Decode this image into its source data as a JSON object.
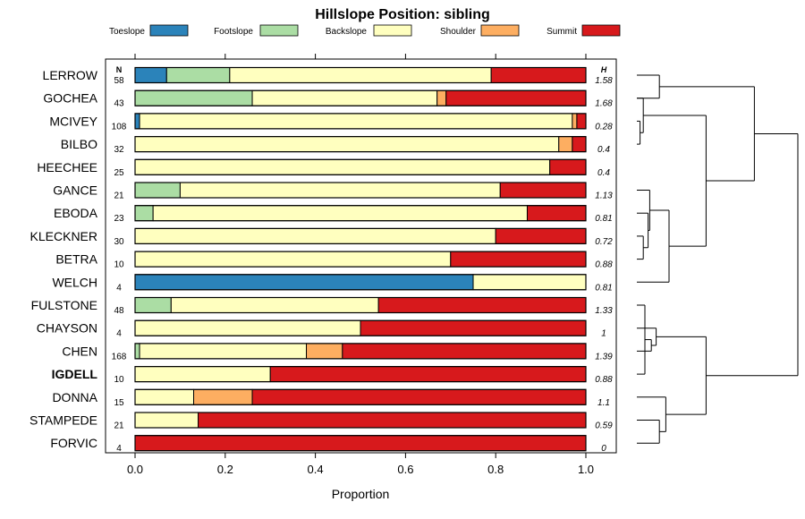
{
  "chart_data": {
    "type": "bar",
    "stacked": true,
    "orientation": "horizontal",
    "title": "Hillslope Position: sibling",
    "xlabel": "Proportion",
    "ylabel": "",
    "xlim": [
      0,
      1
    ],
    "x_ticks": [
      "0.0",
      "0.2",
      "0.4",
      "0.6",
      "0.8",
      "1.0"
    ],
    "legend_position": "top",
    "n_header": "N",
    "h_header": "H",
    "highlighted_category": "IGDELL",
    "legend": [
      {
        "name": "Toeslope",
        "color": "#2b83ba"
      },
      {
        "name": "Footslope",
        "color": "#abdda4"
      },
      {
        "name": "Backslope",
        "color": "#ffffbf"
      },
      {
        "name": "Shoulder",
        "color": "#fdae61"
      },
      {
        "name": "Summit",
        "color": "#d7191c"
      }
    ],
    "categories": [
      "LERROW",
      "GOCHEA",
      "MCIVEY",
      "BILBO",
      "HEECHEE",
      "GANCE",
      "EBODA",
      "KLECKNER",
      "BETRA",
      "WELCH",
      "FULSTONE",
      "CHAYSON",
      "CHEN",
      "IGDELL",
      "DONNA",
      "STAMPEDE",
      "FORVIC"
    ],
    "n": [
      "58",
      "43",
      "108",
      "32",
      "25",
      "21",
      "23",
      "30",
      "10",
      "4",
      "48",
      "4",
      "168",
      "10",
      "15",
      "21",
      "4"
    ],
    "h": [
      "1.58",
      "1.68",
      "0.28",
      "0.4",
      "0.4",
      "1.13",
      "0.81",
      "0.72",
      "0.88",
      "0.81",
      "1.33",
      "1",
      "1.39",
      "0.88",
      "1.1",
      "0.59",
      "0"
    ],
    "series": [
      {
        "name": "Toeslope",
        "values": [
          0.07,
          0,
          0.01,
          0,
          0,
          0,
          0,
          0,
          0,
          0.75,
          0,
          0,
          0,
          0,
          0,
          0,
          0
        ]
      },
      {
        "name": "Footslope",
        "values": [
          0.14,
          0.26,
          0,
          0,
          0,
          0.1,
          0.04,
          0,
          0,
          0,
          0.08,
          0,
          0.01,
          0,
          0,
          0,
          0
        ]
      },
      {
        "name": "Backslope",
        "values": [
          0.58,
          0.41,
          0.96,
          0.94,
          0.92,
          0.71,
          0.83,
          0.8,
          0.7,
          0.25,
          0.46,
          0.5,
          0.37,
          0.3,
          0.13,
          0.14,
          0
        ]
      },
      {
        "name": "Shoulder",
        "values": [
          0,
          0.02,
          0.01,
          0.03,
          0,
          0,
          0,
          0,
          0,
          0,
          0,
          0,
          0.08,
          0,
          0.13,
          0,
          0
        ]
      },
      {
        "name": "Summit",
        "values": [
          0.21,
          0.31,
          0.02,
          0.03,
          0.08,
          0.19,
          0.13,
          0.2,
          0.3,
          0,
          0.46,
          0.5,
          0.54,
          0.7,
          0.74,
          0.86,
          1.0
        ]
      }
    ],
    "dendrogram": {
      "leaves": [
        "LERROW",
        "GOCHEA",
        "MCIVEY",
        "BILBO",
        "HEECHEE",
        "GANCE",
        "EBODA",
        "KLECKNER",
        "BETRA",
        "WELCH",
        "FULSTONE",
        "CHAYSON",
        "CHEN",
        "IGDELL",
        "DONNA",
        "STAMPEDE",
        "FORVIC"
      ],
      "merges": [
        {
          "a": 4,
          "b": 3,
          "height": 0.02
        },
        {
          "a": 2,
          "b": "m0",
          "height": 0.04
        },
        {
          "a": 8,
          "b": 9,
          "height": 0.04
        },
        {
          "a": 11,
          "b": 14,
          "height": 0.05
        },
        {
          "a": 7,
          "b": "m2",
          "height": 0.07
        },
        {
          "a": 6,
          "b": "m4",
          "height": 0.08
        },
        {
          "a": 13,
          "b": "m3",
          "height": 0.09
        },
        {
          "a": 12,
          "b": "m6",
          "height": 0.12
        },
        {
          "a": 1,
          "b": 2,
          "height": 0.14
        },
        {
          "a": 16,
          "b": 17,
          "height": 0.14
        },
        {
          "a": 15,
          "b": "m9",
          "height": 0.18
        },
        {
          "a": "m5",
          "b": 10,
          "height": 0.2
        },
        {
          "a": "m1",
          "b": "m11",
          "height": 0.43
        },
        {
          "a": "m7",
          "b": "m10",
          "height": 0.43
        },
        {
          "a": "m8",
          "b": "m12",
          "height": 0.73
        },
        {
          "a": "m14",
          "b": "m13",
          "height": 1.0
        }
      ]
    }
  }
}
